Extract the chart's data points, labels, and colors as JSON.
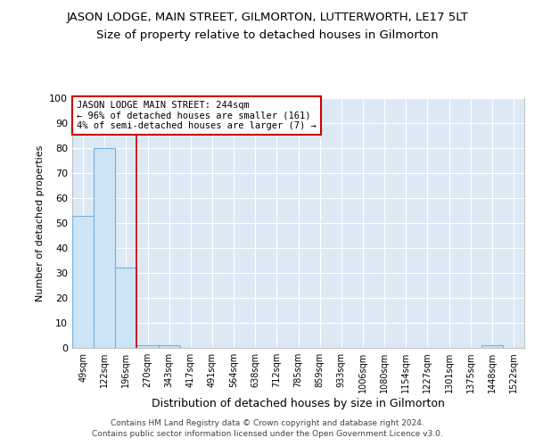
{
  "title": "JASON LODGE, MAIN STREET, GILMORTON, LUTTERWORTH, LE17 5LT",
  "subtitle": "Size of property relative to detached houses in Gilmorton",
  "xlabel": "Distribution of detached houses by size in Gilmorton",
  "ylabel": "Number of detached properties",
  "categories": [
    "49sqm",
    "122sqm",
    "196sqm",
    "270sqm",
    "343sqm",
    "417sqm",
    "491sqm",
    "564sqm",
    "638sqm",
    "712sqm",
    "785sqm",
    "859sqm",
    "933sqm",
    "1006sqm",
    "1080sqm",
    "1154sqm",
    "1227sqm",
    "1301sqm",
    "1375sqm",
    "1448sqm",
    "1522sqm"
  ],
  "bar_heights": [
    53,
    80,
    32,
    1,
    1,
    0,
    0,
    0,
    0,
    0,
    0,
    0,
    0,
    0,
    0,
    0,
    0,
    0,
    0,
    1,
    0
  ],
  "bar_color": "#cce4f5",
  "bar_edge_color": "#7ab0d8",
  "bar_edge_width": 0.8,
  "ylim": [
    0,
    100
  ],
  "yticks": [
    0,
    10,
    20,
    30,
    40,
    50,
    60,
    70,
    80,
    90,
    100
  ],
  "red_line_x": 2.5,
  "annotation_text": "JASON LODGE MAIN STREET: 244sqm\n← 96% of detached houses are smaller (161)\n4% of semi-detached houses are larger (7) →",
  "annotation_box_color": "#ffffff",
  "annotation_box_edge_color": "#cc0000",
  "footer_line1": "Contains HM Land Registry data © Crown copyright and database right 2024.",
  "footer_line2": "Contains public sector information licensed under the Open Government Licence v3.0.",
  "background_color": "#dde8f5",
  "grid_color": "#ffffff",
  "title_fontsize": 9.5,
  "subtitle_fontsize": 9.5
}
